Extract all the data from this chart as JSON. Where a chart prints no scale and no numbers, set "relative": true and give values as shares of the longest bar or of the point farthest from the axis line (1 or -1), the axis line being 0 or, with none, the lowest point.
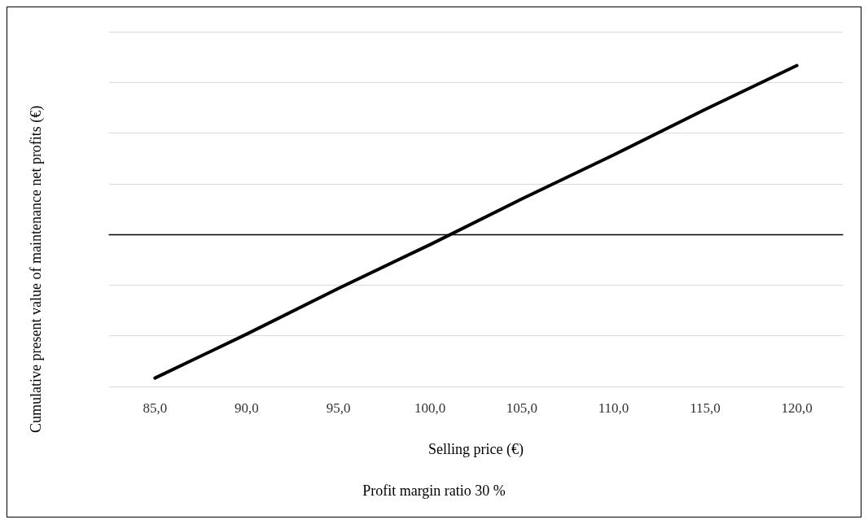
{
  "chart_data": {
    "type": "line",
    "relative": true,
    "xlabel": "Selling price (€)",
    "ylabel": "Cumulative present value of maintenance net profits (€)",
    "annotations": [
      "Profit margin ratio 30 %"
    ],
    "categories": [
      "85,0",
      "90,0",
      "95,0",
      "100,0",
      "105,0",
      "110,0",
      "115,0",
      "120,0"
    ],
    "series": [
      {
        "color": "#000000",
        "values": [
          -0.85,
          -0.59,
          -0.32,
          -0.06,
          0.21,
          0.47,
          0.74,
          1
        ]
      }
    ],
    "grid": "y",
    "marker": "none",
    "line_style": "solid"
  }
}
